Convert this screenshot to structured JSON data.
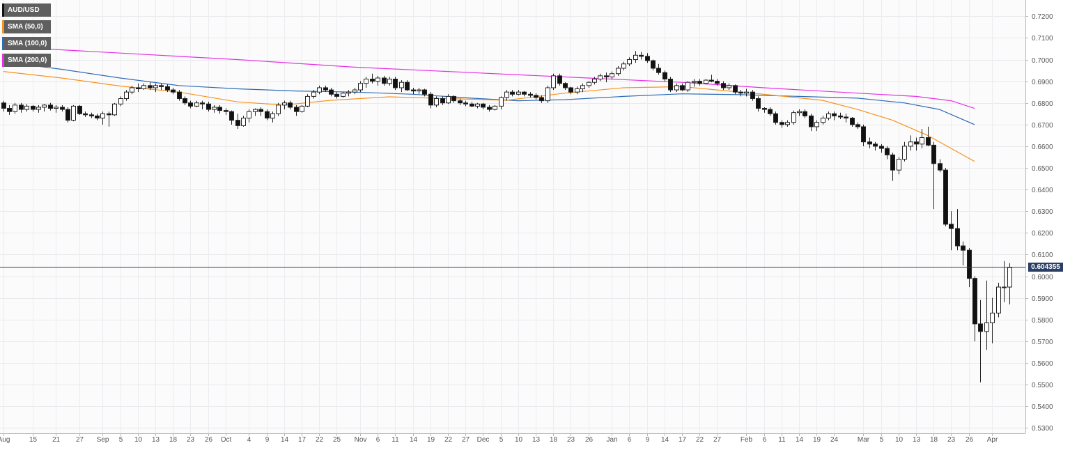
{
  "chart_data": {
    "type": "candlestick",
    "symbol": "AUD/USD",
    "indicators": [
      {
        "name": "SMA (50,0)",
        "color": "#f7931e"
      },
      {
        "name": "SMA (100,0)",
        "color": "#2e6bb5"
      },
      {
        "name": "SMA (200,0)",
        "color": "#e62fe6"
      }
    ],
    "symbol_color": "#111111",
    "ylim": [
      0.5275,
      0.7275
    ],
    "y_ticks": [
      "0.7200",
      "0.7100",
      "0.7000",
      "0.6900",
      "0.6800",
      "0.6700",
      "0.6600",
      "0.6500",
      "0.6400",
      "0.6300",
      "0.6200",
      "0.6100",
      "0.6000",
      "0.5900",
      "0.5800",
      "0.5700",
      "0.5600",
      "0.5500",
      "0.5400",
      "0.5300"
    ],
    "x_ticks": [
      {
        "label": "Aug",
        "i": 0
      },
      {
        "label": "15",
        "i": 5
      },
      {
        "label": "21",
        "i": 9
      },
      {
        "label": "27",
        "i": 13
      },
      {
        "label": "Sep",
        "i": 17
      },
      {
        "label": "5",
        "i": 20
      },
      {
        "label": "10",
        "i": 23
      },
      {
        "label": "13",
        "i": 26
      },
      {
        "label": "18",
        "i": 29
      },
      {
        "label": "23",
        "i": 32
      },
      {
        "label": "26",
        "i": 35
      },
      {
        "label": "Oct",
        "i": 38
      },
      {
        "label": "4",
        "i": 42
      },
      {
        "label": "9",
        "i": 45
      },
      {
        "label": "14",
        "i": 48
      },
      {
        "label": "17",
        "i": 51
      },
      {
        "label": "22",
        "i": 54
      },
      {
        "label": "25",
        "i": 57
      },
      {
        "label": "Nov",
        "i": 61
      },
      {
        "label": "6",
        "i": 64
      },
      {
        "label": "11",
        "i": 67
      },
      {
        "label": "14",
        "i": 70
      },
      {
        "label": "19",
        "i": 73
      },
      {
        "label": "22",
        "i": 76
      },
      {
        "label": "27",
        "i": 79
      },
      {
        "label": "Dec",
        "i": 82
      },
      {
        "label": "5",
        "i": 85
      },
      {
        "label": "10",
        "i": 88
      },
      {
        "label": "13",
        "i": 91
      },
      {
        "label": "18",
        "i": 94
      },
      {
        "label": "23",
        "i": 97
      },
      {
        "label": "26",
        "i": 100
      },
      {
        "label": "Jan",
        "i": 104
      },
      {
        "label": "6",
        "i": 107
      },
      {
        "label": "9",
        "i": 110
      },
      {
        "label": "14",
        "i": 113
      },
      {
        "label": "17",
        "i": 116
      },
      {
        "label": "22",
        "i": 119
      },
      {
        "label": "27",
        "i": 122
      },
      {
        "label": "Feb",
        "i": 127
      },
      {
        "label": "6",
        "i": 130
      },
      {
        "label": "11",
        "i": 133
      },
      {
        "label": "14",
        "i": 136
      },
      {
        "label": "19",
        "i": 139
      },
      {
        "label": "24",
        "i": 142
      },
      {
        "label": "Mar",
        "i": 147
      },
      {
        "label": "5",
        "i": 150
      },
      {
        "label": "10",
        "i": 153
      },
      {
        "label": "13",
        "i": 156
      },
      {
        "label": "18",
        "i": 159
      },
      {
        "label": "23",
        "i": 162
      },
      {
        "label": "26",
        "i": 165
      },
      {
        "label": "Apr",
        "i": 169
      }
    ],
    "last_price": "0.604355",
    "last_price_value": 0.60436,
    "candles": [
      [
        0.68,
        0.681,
        0.676,
        0.6775
      ],
      [
        0.6775,
        0.679,
        0.6745,
        0.676
      ],
      [
        0.676,
        0.68,
        0.675,
        0.679
      ],
      [
        0.679,
        0.68,
        0.6755,
        0.677
      ],
      [
        0.677,
        0.6795,
        0.676,
        0.6785
      ],
      [
        0.6785,
        0.679,
        0.676,
        0.677
      ],
      [
        0.677,
        0.679,
        0.6755,
        0.678
      ],
      [
        0.678,
        0.6795,
        0.676,
        0.679
      ],
      [
        0.679,
        0.68,
        0.6765,
        0.6775
      ],
      [
        0.6775,
        0.679,
        0.6755,
        0.678
      ],
      [
        0.678,
        0.679,
        0.676,
        0.677
      ],
      [
        0.677,
        0.678,
        0.671,
        0.672
      ],
      [
        0.672,
        0.679,
        0.6715,
        0.6785
      ],
      [
        0.6785,
        0.679,
        0.6745,
        0.675
      ],
      [
        0.675,
        0.676,
        0.6735,
        0.6745
      ],
      [
        0.6745,
        0.6755,
        0.673,
        0.674
      ],
      [
        0.674,
        0.675,
        0.672,
        0.673
      ],
      [
        0.673,
        0.676,
        0.67,
        0.675
      ],
      [
        0.675,
        0.676,
        0.669,
        0.6745
      ],
      [
        0.6745,
        0.68,
        0.674,
        0.6795
      ],
      [
        0.6795,
        0.683,
        0.6785,
        0.682
      ],
      [
        0.682,
        0.686,
        0.681,
        0.685
      ],
      [
        0.685,
        0.688,
        0.684,
        0.687
      ],
      [
        0.687,
        0.689,
        0.685,
        0.6865
      ],
      [
        0.6865,
        0.689,
        0.686,
        0.688
      ],
      [
        0.688,
        0.6895,
        0.686,
        0.687
      ],
      [
        0.687,
        0.689,
        0.685,
        0.688
      ],
      [
        0.688,
        0.689,
        0.686,
        0.6875
      ],
      [
        0.6875,
        0.6885,
        0.685,
        0.686
      ],
      [
        0.686,
        0.687,
        0.684,
        0.685
      ],
      [
        0.685,
        0.686,
        0.681,
        0.682
      ],
      [
        0.682,
        0.683,
        0.679,
        0.68
      ],
      [
        0.68,
        0.681,
        0.6775,
        0.6785
      ],
      [
        0.6785,
        0.681,
        0.678,
        0.68
      ],
      [
        0.68,
        0.681,
        0.677,
        0.6795
      ],
      [
        0.6795,
        0.6805,
        0.676,
        0.677
      ],
      [
        0.677,
        0.679,
        0.6755,
        0.678
      ],
      [
        0.678,
        0.679,
        0.675,
        0.6765
      ],
      [
        0.6765,
        0.6775,
        0.6745,
        0.676
      ],
      [
        0.676,
        0.6765,
        0.67,
        0.672
      ],
      [
        0.672,
        0.675,
        0.668,
        0.6695
      ],
      [
        0.6695,
        0.674,
        0.669,
        0.673
      ],
      [
        0.673,
        0.677,
        0.671,
        0.676
      ],
      [
        0.676,
        0.6775,
        0.674,
        0.677
      ],
      [
        0.677,
        0.678,
        0.674,
        0.676
      ],
      [
        0.676,
        0.677,
        0.672,
        0.673
      ],
      [
        0.673,
        0.676,
        0.671,
        0.675
      ],
      [
        0.675,
        0.68,
        0.674,
        0.679
      ],
      [
        0.679,
        0.681,
        0.677,
        0.68
      ],
      [
        0.68,
        0.681,
        0.677,
        0.678
      ],
      [
        0.678,
        0.679,
        0.674,
        0.676
      ],
      [
        0.676,
        0.679,
        0.6755,
        0.6785
      ],
      [
        0.6785,
        0.684,
        0.678,
        0.683
      ],
      [
        0.683,
        0.686,
        0.682,
        0.685
      ],
      [
        0.685,
        0.688,
        0.684,
        0.687
      ],
      [
        0.687,
        0.688,
        0.685,
        0.686
      ],
      [
        0.686,
        0.687,
        0.683,
        0.684
      ],
      [
        0.684,
        0.685,
        0.682,
        0.683
      ],
      [
        0.683,
        0.685,
        0.6825,
        0.6845
      ],
      [
        0.6845,
        0.686,
        0.683,
        0.685
      ],
      [
        0.685,
        0.687,
        0.684,
        0.686
      ],
      [
        0.686,
        0.69,
        0.685,
        0.689
      ],
      [
        0.689,
        0.692,
        0.687,
        0.691
      ],
      [
        0.691,
        0.6935,
        0.689,
        0.69
      ],
      [
        0.69,
        0.6925,
        0.688,
        0.6915
      ],
      [
        0.6915,
        0.6925,
        0.688,
        0.689
      ],
      [
        0.689,
        0.692,
        0.688,
        0.691
      ],
      [
        0.691,
        0.692,
        0.686,
        0.687
      ],
      [
        0.687,
        0.6905,
        0.685,
        0.6895
      ],
      [
        0.6895,
        0.6905,
        0.6855,
        0.686
      ],
      [
        0.686,
        0.687,
        0.684,
        0.6855
      ],
      [
        0.6855,
        0.687,
        0.684,
        0.686
      ],
      [
        0.686,
        0.6865,
        0.683,
        0.684
      ],
      [
        0.684,
        0.685,
        0.6775,
        0.679
      ],
      [
        0.679,
        0.683,
        0.678,
        0.682
      ],
      [
        0.682,
        0.683,
        0.679,
        0.68
      ],
      [
        0.68,
        0.684,
        0.6795,
        0.683
      ],
      [
        0.683,
        0.6835,
        0.68,
        0.681
      ],
      [
        0.681,
        0.682,
        0.679,
        0.68
      ],
      [
        0.68,
        0.681,
        0.6785,
        0.6795
      ],
      [
        0.6795,
        0.6805,
        0.678,
        0.6785
      ],
      [
        0.6785,
        0.68,
        0.6775,
        0.6795
      ],
      [
        0.6795,
        0.68,
        0.677,
        0.678
      ],
      [
        0.678,
        0.679,
        0.676,
        0.677
      ],
      [
        0.677,
        0.679,
        0.6765,
        0.6785
      ],
      [
        0.6785,
        0.683,
        0.677,
        0.6825
      ],
      [
        0.6825,
        0.686,
        0.681,
        0.685
      ],
      [
        0.685,
        0.686,
        0.683,
        0.684
      ],
      [
        0.684,
        0.686,
        0.6835,
        0.685
      ],
      [
        0.685,
        0.6855,
        0.683,
        0.684
      ],
      [
        0.684,
        0.685,
        0.6825,
        0.6835
      ],
      [
        0.6835,
        0.6845,
        0.6815,
        0.6825
      ],
      [
        0.6825,
        0.6835,
        0.68,
        0.681
      ],
      [
        0.681,
        0.688,
        0.68,
        0.687
      ],
      [
        0.687,
        0.6935,
        0.686,
        0.6925
      ],
      [
        0.6925,
        0.6935,
        0.688,
        0.689
      ],
      [
        0.689,
        0.6895,
        0.686,
        0.687
      ],
      [
        0.687,
        0.6875,
        0.684,
        0.685
      ],
      [
        0.685,
        0.6875,
        0.684,
        0.6865
      ],
      [
        0.6865,
        0.689,
        0.685,
        0.688
      ],
      [
        0.688,
        0.69,
        0.687,
        0.6895
      ],
      [
        0.6895,
        0.692,
        0.6885,
        0.691
      ],
      [
        0.691,
        0.6935,
        0.69,
        0.6925
      ],
      [
        0.6925,
        0.694,
        0.6895,
        0.692
      ],
      [
        0.692,
        0.6945,
        0.691,
        0.6935
      ],
      [
        0.6935,
        0.697,
        0.6925,
        0.696
      ],
      [
        0.696,
        0.699,
        0.695,
        0.698
      ],
      [
        0.698,
        0.701,
        0.697,
        0.7
      ],
      [
        0.7,
        0.704,
        0.6985,
        0.702
      ],
      [
        0.702,
        0.7035,
        0.7,
        0.7015
      ],
      [
        0.7015,
        0.703,
        0.6985,
        0.6995
      ],
      [
        0.6995,
        0.7,
        0.695,
        0.696
      ],
      [
        0.696,
        0.698,
        0.693,
        0.694
      ],
      [
        0.694,
        0.695,
        0.69,
        0.691
      ],
      [
        0.691,
        0.692,
        0.685,
        0.686
      ],
      [
        0.686,
        0.689,
        0.685,
        0.688
      ],
      [
        0.688,
        0.689,
        0.6855,
        0.686
      ],
      [
        0.686,
        0.69,
        0.685,
        0.6895
      ],
      [
        0.6895,
        0.691,
        0.6875,
        0.69
      ],
      [
        0.69,
        0.691,
        0.688,
        0.689
      ],
      [
        0.689,
        0.691,
        0.6885,
        0.6905
      ],
      [
        0.6905,
        0.693,
        0.6895,
        0.69
      ],
      [
        0.69,
        0.691,
        0.688,
        0.689
      ],
      [
        0.689,
        0.69,
        0.686,
        0.687
      ],
      [
        0.687,
        0.689,
        0.686,
        0.688
      ],
      [
        0.688,
        0.6885,
        0.684,
        0.685
      ],
      [
        0.685,
        0.686,
        0.683,
        0.6845
      ],
      [
        0.6845,
        0.6865,
        0.683,
        0.685
      ],
      [
        0.685,
        0.686,
        0.681,
        0.682
      ],
      [
        0.682,
        0.683,
        0.676,
        0.6775
      ],
      [
        0.6775,
        0.678,
        0.6755,
        0.677
      ],
      [
        0.677,
        0.678,
        0.674,
        0.675
      ],
      [
        0.675,
        0.676,
        0.67,
        0.671
      ],
      [
        0.671,
        0.672,
        0.6685,
        0.67
      ],
      [
        0.67,
        0.672,
        0.669,
        0.671
      ],
      [
        0.671,
        0.6765,
        0.67,
        0.6755
      ],
      [
        0.6755,
        0.677,
        0.674,
        0.676
      ],
      [
        0.676,
        0.677,
        0.673,
        0.674
      ],
      [
        0.674,
        0.675,
        0.667,
        0.669
      ],
      [
        0.669,
        0.672,
        0.667,
        0.671
      ],
      [
        0.671,
        0.674,
        0.67,
        0.673
      ],
      [
        0.673,
        0.676,
        0.672,
        0.675
      ],
      [
        0.675,
        0.676,
        0.672,
        0.674
      ],
      [
        0.674,
        0.6755,
        0.6725,
        0.6735
      ],
      [
        0.6735,
        0.675,
        0.671,
        0.673
      ],
      [
        0.673,
        0.6735,
        0.669,
        0.67
      ],
      [
        0.67,
        0.671,
        0.668,
        0.669
      ],
      [
        0.669,
        0.67,
        0.66,
        0.662
      ],
      [
        0.662,
        0.664,
        0.659,
        0.661
      ],
      [
        0.661,
        0.662,
        0.658,
        0.66
      ],
      [
        0.66,
        0.661,
        0.657,
        0.659
      ],
      [
        0.659,
        0.66,
        0.654,
        0.656
      ],
      [
        0.656,
        0.657,
        0.644,
        0.649
      ],
      [
        0.649,
        0.655,
        0.647,
        0.654
      ],
      [
        0.654,
        0.662,
        0.653,
        0.66
      ],
      [
        0.66,
        0.665,
        0.658,
        0.662
      ],
      [
        0.662,
        0.664,
        0.658,
        0.661
      ],
      [
        0.661,
        0.668,
        0.659,
        0.664
      ],
      [
        0.664,
        0.669,
        0.66,
        0.6605
      ],
      [
        0.6605,
        0.662,
        0.631,
        0.652
      ],
      [
        0.652,
        0.654,
        0.648,
        0.649
      ],
      [
        0.649,
        0.65,
        0.623,
        0.624
      ],
      [
        0.624,
        0.63,
        0.612,
        0.622
      ],
      [
        0.622,
        0.631,
        0.612,
        0.614
      ],
      [
        0.614,
        0.616,
        0.605,
        0.612
      ],
      [
        0.612,
        0.613,
        0.595,
        0.599
      ],
      [
        0.599,
        0.6,
        0.57,
        0.578
      ],
      [
        0.578,
        0.589,
        0.551,
        0.5745
      ],
      [
        0.5745,
        0.598,
        0.566,
        0.5785
      ],
      [
        0.5785,
        0.59,
        0.569,
        0.583
      ],
      [
        0.583,
        0.597,
        0.581,
        0.595
      ],
      [
        0.595,
        0.607,
        0.588,
        0.595
      ],
      [
        0.595,
        0.606,
        0.587,
        0.604
      ]
    ],
    "sma50": [
      [
        0,
        0.6945
      ],
      [
        10,
        0.6915
      ],
      [
        20,
        0.6878
      ],
      [
        30,
        0.685
      ],
      [
        40,
        0.6805
      ],
      [
        48,
        0.679
      ],
      [
        56,
        0.6812
      ],
      [
        66,
        0.6828
      ],
      [
        76,
        0.682
      ],
      [
        86,
        0.6812
      ],
      [
        96,
        0.6845
      ],
      [
        106,
        0.687
      ],
      [
        116,
        0.6875
      ],
      [
        122,
        0.686
      ],
      [
        130,
        0.684
      ],
      [
        140,
        0.6812
      ],
      [
        146,
        0.677
      ],
      [
        152,
        0.672
      ],
      [
        158,
        0.665
      ],
      [
        166,
        0.653
      ]
    ],
    "sma100": [
      [
        0,
        0.699
      ],
      [
        10,
        0.6955
      ],
      [
        20,
        0.6915
      ],
      [
        30,
        0.688
      ],
      [
        40,
        0.6865
      ],
      [
        50,
        0.6855
      ],
      [
        60,
        0.685
      ],
      [
        70,
        0.684
      ],
      [
        80,
        0.6822
      ],
      [
        88,
        0.681
      ],
      [
        96,
        0.6815
      ],
      [
        106,
        0.683
      ],
      [
        116,
        0.6842
      ],
      [
        126,
        0.6838
      ],
      [
        136,
        0.683
      ],
      [
        146,
        0.6822
      ],
      [
        154,
        0.68
      ],
      [
        160,
        0.677
      ],
      [
        166,
        0.67
      ]
    ],
    "sma200": [
      [
        0,
        0.706
      ],
      [
        20,
        0.703
      ],
      [
        40,
        0.7
      ],
      [
        60,
        0.6965
      ],
      [
        80,
        0.694
      ],
      [
        100,
        0.6915
      ],
      [
        116,
        0.6895
      ],
      [
        130,
        0.687
      ],
      [
        146,
        0.6845
      ],
      [
        156,
        0.683
      ],
      [
        162,
        0.681
      ],
      [
        166,
        0.6775
      ]
    ]
  }
}
